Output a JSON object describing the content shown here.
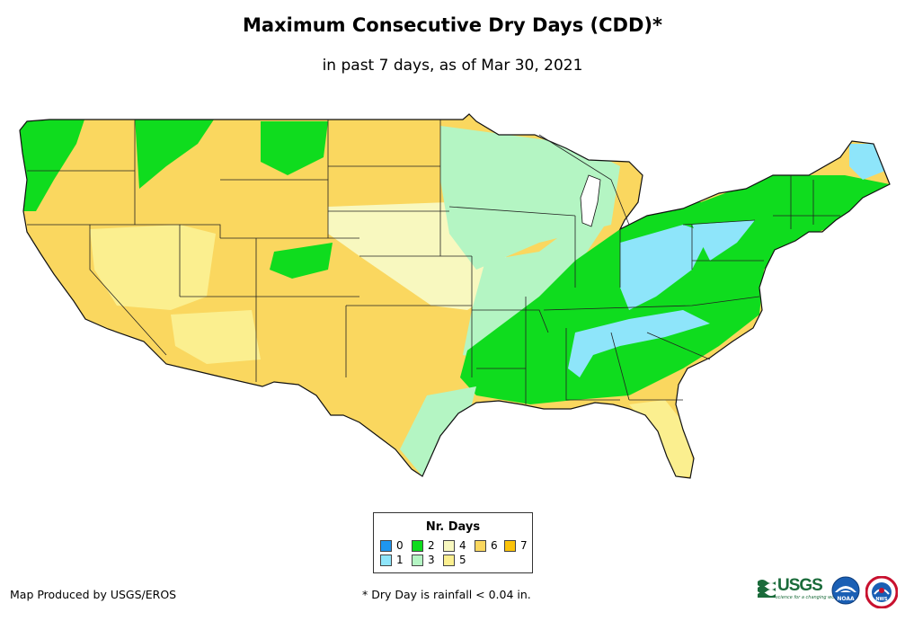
{
  "title": "Maximum Consecutive Dry Days (CDD)*",
  "subtitle": "in past 7 days, as of Mar 30, 2021",
  "legend": {
    "title": "Nr. Days",
    "items": [
      {
        "label": "0",
        "color": "#1e96f0"
      },
      {
        "label": "1",
        "color": "#8ee5fa"
      },
      {
        "label": "2",
        "color": "#0fdc1e"
      },
      {
        "label": "3",
        "color": "#b4f5c3"
      },
      {
        "label": "4",
        "color": "#f8f8bf"
      },
      {
        "label": "5",
        "color": "#fbef8f"
      },
      {
        "label": "6",
        "color": "#fad75f"
      },
      {
        "label": "7",
        "color": "#fbc30a"
      }
    ]
  },
  "credit": "Map Produced by USGS/EROS",
  "footnote": "* Dry Day is rainfall < 0.04 in.",
  "logos": {
    "usgs": "USGS",
    "usgs_tagline": "science for a changing world",
    "noaa": "NOAA",
    "nws": "NWS"
  }
}
